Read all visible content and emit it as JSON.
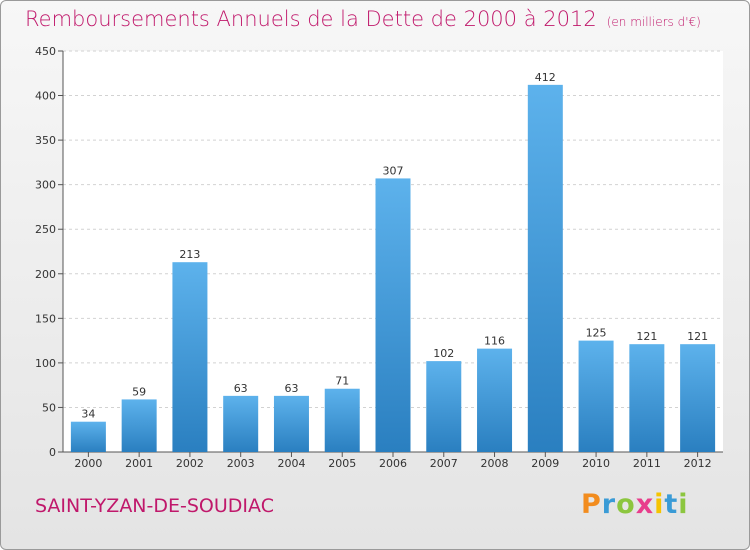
{
  "chart_data": {
    "type": "bar",
    "title": "Remboursements Annuels de la Dette de 2000 à 2012",
    "unit_note": "(en milliers d'€)",
    "categories": [
      "2000",
      "2001",
      "2002",
      "2003",
      "2004",
      "2005",
      "2006",
      "2007",
      "2008",
      "2009",
      "2010",
      "2011",
      "2012"
    ],
    "values": [
      34,
      59,
      213,
      63,
      63,
      71,
      307,
      102,
      116,
      412,
      125,
      121,
      121
    ],
    "yticks": [
      0,
      50,
      100,
      150,
      200,
      250,
      300,
      350,
      400,
      450
    ],
    "ylim": [
      0,
      450
    ],
    "xlabel": "",
    "ylabel": "",
    "grid": true,
    "bar_color": "#3a9ad9"
  },
  "commune": "SAINT-YZAN-DE-SOUDIAC",
  "logo": {
    "letters": [
      "P",
      "r",
      "o",
      "x",
      "i",
      "t",
      "i"
    ]
  }
}
